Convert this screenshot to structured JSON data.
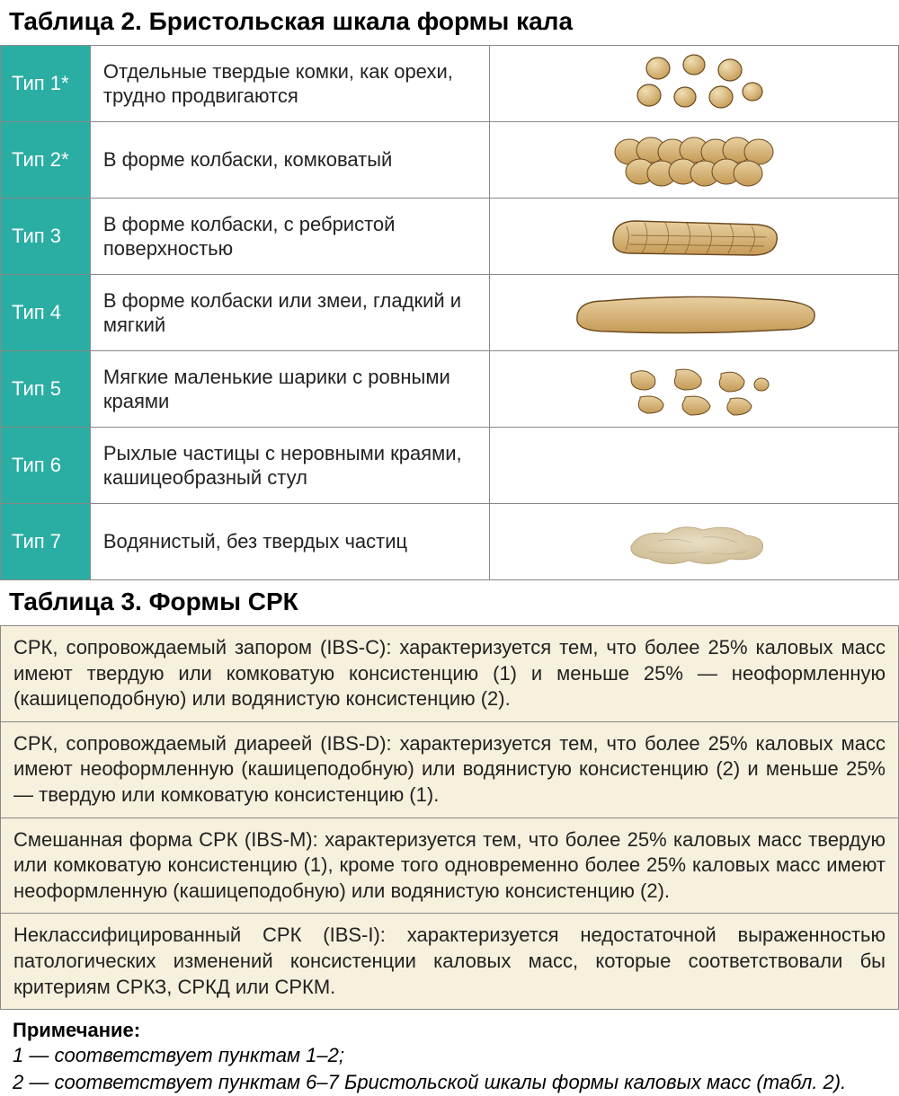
{
  "colors": {
    "type_cell_bg": "#2aaea3",
    "type_cell_text": "#ffffff",
    "border": "#888888",
    "srk_bg": "#f6f0dc",
    "stool_fill": "#d9b97a",
    "stool_stroke": "#6b4a1f",
    "stool_light": "#e8d4a8"
  },
  "table2": {
    "title": "Таблица 2. Бристольская шкала формы кала",
    "rows": [
      {
        "type": "Тип 1*",
        "desc": "Отдельные твердые комки, как орехи, трудно продвигаются",
        "icon": "type1"
      },
      {
        "type": "Тип 2*",
        "desc": "В форме колбаски, комковатый",
        "icon": "type2"
      },
      {
        "type": "Тип 3",
        "desc": "В форме колбаски, с ребристой поверхностью",
        "icon": "type3"
      },
      {
        "type": "Тип 4",
        "desc": "В форме колбаски или змеи, гладкий и мягкий",
        "icon": "type4"
      },
      {
        "type": "Тип 5",
        "desc": "Мягкие маленькие шарики с ровными краями",
        "icon": "type5"
      },
      {
        "type": "Тип 6",
        "desc": "Рыхлые частицы с неровными краями, кашицеобразный стул",
        "icon": "type6"
      },
      {
        "type": "Тип 7",
        "desc": "Водянистый, без твердых частиц",
        "icon": "type7"
      }
    ]
  },
  "table3": {
    "title": "Таблица 3. Формы СРК",
    "rows": [
      "СРК, сопровождаемый запором (IBS-C): характеризуется тем, что более 25% каловых масс имеют твердую или комковатую консистенцию (1) и меньше 25% — неоформленную (кашицеподобную) или водянистую консистенцию (2).",
      "СРК, сопровождаемый диареей (IBS-D): характеризуется тем, что более 25% каловых масс имеют неоформленную (кашицеподобную) или водянистую консистенцию (2) и меньше 25% — твердую или комковатую консистенцию (1).",
      "Смешанная форма СРК (IBS-M): характеризуется тем, что более 25% каловых масс твердую или комковатую консистенцию (1), кроме того одновременно более 25% каловых масс имеют неоформленную (кашицеподобную) или водянистую консистенцию (2).",
      "Неклассифицированный СРК (IBS-I): характеризуется недостаточной выраженностью патологических изменений консистенции каловых масс, которые соответствовали бы критериям СРКЗ, СРКД или СРКМ."
    ]
  },
  "note": {
    "title": "Примечание:",
    "lines": [
      "1 — соответствует пунктам 1–2;",
      "2 — соответствует пунктам 6–7 Бристольской шкалы формы каловых масс (табл. 2)."
    ]
  }
}
